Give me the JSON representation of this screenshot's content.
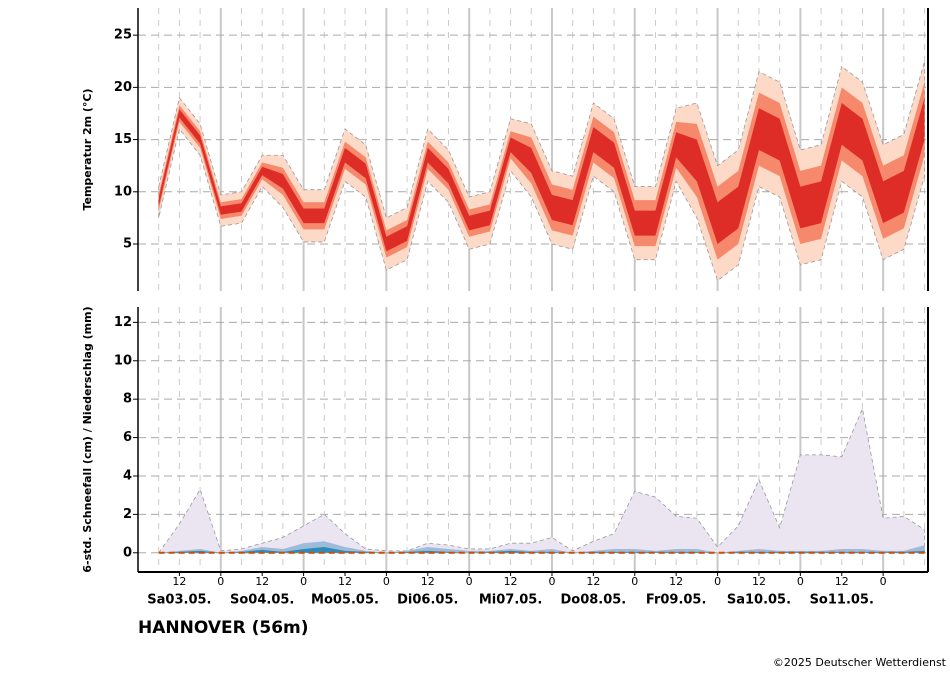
{
  "axis_x": {
    "x": [
      6,
      12,
      18,
      24,
      30,
      36,
      42,
      48,
      54,
      60,
      66,
      72,
      78,
      84,
      90,
      96,
      102,
      108,
      114,
      120,
      126,
      132,
      138,
      144,
      150,
      156,
      162,
      168,
      174,
      180,
      186,
      192,
      198,
      204,
      210,
      216,
      222,
      228
    ],
    "xlim": [
      0,
      229
    ],
    "xticks": [
      {
        "value": 12,
        "label": "12"
      },
      {
        "value": 24,
        "label": "0"
      },
      {
        "value": 36,
        "label": "12"
      },
      {
        "value": 48,
        "label": "0"
      },
      {
        "value": 60,
        "label": "12"
      },
      {
        "value": 72,
        "label": "0"
      },
      {
        "value": 84,
        "label": "12"
      },
      {
        "value": 96,
        "label": "0"
      },
      {
        "value": 108,
        "label": "12"
      },
      {
        "value": 120,
        "label": "0"
      },
      {
        "value": 132,
        "label": "12"
      },
      {
        "value": 144,
        "label": "0"
      },
      {
        "value": 156,
        "label": "12"
      },
      {
        "value": 168,
        "label": "0"
      },
      {
        "value": 180,
        "label": "12"
      },
      {
        "value": 192,
        "label": "0"
      },
      {
        "value": 204,
        "label": "12"
      },
      {
        "value": 216,
        "label": "0"
      }
    ],
    "day_labels": [
      {
        "value": 12,
        "label": "Sa03.05."
      },
      {
        "value": 36,
        "label": "So04.05."
      },
      {
        "value": 60,
        "label": "Mo05.05."
      },
      {
        "value": 84,
        "label": "Di06.05."
      },
      {
        "value": 108,
        "label": "Mi07.05."
      },
      {
        "value": 132,
        "label": "Do08.05."
      },
      {
        "value": 156,
        "label": "Fr09.05."
      },
      {
        "value": 180,
        "label": "Sa10.05."
      },
      {
        "value": 204,
        "label": "So11.05."
      }
    ]
  },
  "chart_data": [
    {
      "type": "band",
      "ylabel": "Temperatur 2m (°C)",
      "ylim": [
        0.5,
        27.6
      ],
      "yticks": [
        5,
        10,
        15,
        20,
        25
      ],
      "grid": true,
      "bands": [
        {
          "color": "#fdd9c8",
          "outline": "#999999",
          "lower": [
            7.5,
            16,
            13.5,
            6.7,
            7,
            10.5,
            8.5,
            5.2,
            5.2,
            11,
            9.5,
            2.5,
            3.5,
            11,
            9,
            4.5,
            5,
            12,
            9.5,
            5,
            4.5,
            11.5,
            10,
            3.5,
            3.5,
            11,
            7.5,
            1.5,
            3,
            10.5,
            9.5,
            3,
            3.5,
            11,
            9.5,
            3.5,
            4.5,
            11.5
          ],
          "upper": [
            10.5,
            19,
            16.5,
            9.7,
            10,
            13.5,
            13.5,
            10.2,
            10.2,
            16,
            14.5,
            7.5,
            8.5,
            16,
            14,
            9.5,
            10,
            17,
            16.5,
            12,
            11.5,
            18.5,
            17,
            10.5,
            10.5,
            18,
            18.5,
            12.5,
            14,
            21.5,
            20.5,
            14,
            14.5,
            22,
            20.5,
            14.5,
            15.5,
            22.5
          ]
        },
        {
          "color": "#f6896c",
          "lower": [
            8.2,
            16.7,
            14.2,
            7.4,
            7.7,
            11.2,
            9.7,
            6.4,
            6.4,
            12.2,
            10.7,
            3.7,
            4.7,
            12.2,
            10.2,
            5.7,
            6.2,
            13.2,
            10.8,
            6.3,
            5.8,
            12.8,
            11.3,
            4.8,
            4.8,
            12.3,
            9.5,
            3.5,
            5,
            12.5,
            11.5,
            5,
            5.5,
            13,
            11.5,
            5.5,
            6.5,
            13.5
          ],
          "upper": [
            9.8,
            18.3,
            15.8,
            9.0,
            9.3,
            12.8,
            12.3,
            9.0,
            9.0,
            14.8,
            13.3,
            6.3,
            7.3,
            14.8,
            12.8,
            8.3,
            8.8,
            15.8,
            15.2,
            10.7,
            10.2,
            17.2,
            15.7,
            9.2,
            9.2,
            16.7,
            16.5,
            10.5,
            12,
            19.5,
            18.5,
            12,
            12.5,
            20,
            18.5,
            12.5,
            13.5,
            20.5
          ]
        },
        {
          "color": "#de2d26",
          "lower": [
            8.6,
            17.1,
            14.6,
            7.8,
            8.1,
            11.6,
            10.3,
            7.0,
            7.0,
            12.8,
            11.3,
            4.3,
            5.3,
            12.8,
            10.8,
            6.3,
            6.8,
            13.8,
            11.8,
            7.3,
            6.8,
            13.8,
            12.3,
            5.8,
            5.8,
            13.3,
            11,
            5,
            6.5,
            14,
            13,
            6.5,
            7,
            14.5,
            13,
            7,
            8,
            15
          ],
          "upper": [
            9.4,
            17.9,
            15.4,
            8.6,
            8.9,
            12.4,
            11.7,
            8.4,
            8.4,
            14.2,
            12.7,
            5.7,
            6.7,
            14.2,
            12.2,
            7.7,
            8.2,
            15.2,
            14.2,
            9.7,
            9.2,
            16.2,
            14.7,
            8.2,
            8.2,
            15.7,
            15,
            9,
            10.5,
            18,
            17,
            10.5,
            11,
            18.5,
            17,
            11,
            12,
            19
          ]
        }
      ]
    },
    {
      "type": "area",
      "ylabel": "6-std. Schneefall (cm) / Niederschlag (mm)",
      "ylim": [
        -1,
        12.8
      ],
      "yticks": [
        0,
        2,
        4,
        6,
        8,
        10,
        12
      ],
      "grid": true,
      "areas": [
        {
          "color": "#ebe5f2",
          "outline": "#999999",
          "values": [
            0,
            1.5,
            3.3,
            0.1,
            0.2,
            0.5,
            0.8,
            1.4,
            2.0,
            1.0,
            0.2,
            0.1,
            0.1,
            0.5,
            0.4,
            0.2,
            0.2,
            0.5,
            0.5,
            0.8,
            0.1,
            0.6,
            1.0,
            3.2,
            2.9,
            1.9,
            1.8,
            0.3,
            1.4,
            3.8,
            1.3,
            5.1,
            5.1,
            5.0,
            7.5,
            1.8,
            1.9,
            1.2
          ]
        },
        {
          "color": "#9ebcda",
          "values": [
            0,
            0.1,
            0.2,
            0,
            0.1,
            0.3,
            0.2,
            0.5,
            0.6,
            0.3,
            0.1,
            0,
            0.1,
            0.3,
            0.2,
            0.1,
            0.1,
            0.2,
            0.1,
            0.2,
            0,
            0.1,
            0.2,
            0.2,
            0.1,
            0.2,
            0.2,
            0,
            0.1,
            0.2,
            0.1,
            0.1,
            0.1,
            0.2,
            0.2,
            0.1,
            0.1,
            0.4
          ]
        },
        {
          "color": "#2b8cbe",
          "values": [
            0,
            0.05,
            0.1,
            0,
            0.05,
            0.15,
            0.05,
            0.2,
            0.3,
            0.1,
            0.05,
            0,
            0.05,
            0.1,
            0.05,
            0,
            0.05,
            0.1,
            0.05,
            0.05,
            0,
            0.05,
            0.05,
            0.05,
            0.05,
            0.05,
            0.05,
            0,
            0.05,
            0.05,
            0.05,
            0.05,
            0.05,
            0.05,
            0.05,
            0.05,
            0.05,
            0.1
          ]
        }
      ],
      "line": {
        "color": "#cc4c02",
        "values": [
          0,
          0,
          0,
          0,
          0,
          0,
          0,
          0,
          0,
          0,
          0,
          0,
          0,
          0,
          0,
          0,
          0,
          0,
          0,
          0,
          0,
          0,
          0,
          0,
          0,
          0,
          0,
          0,
          0,
          0,
          0,
          0,
          0,
          0,
          0,
          0,
          0,
          0
        ]
      }
    }
  ],
  "station": "HANNOVER (56m)",
  "credit": "©2025 Deutscher Wetterdienst"
}
